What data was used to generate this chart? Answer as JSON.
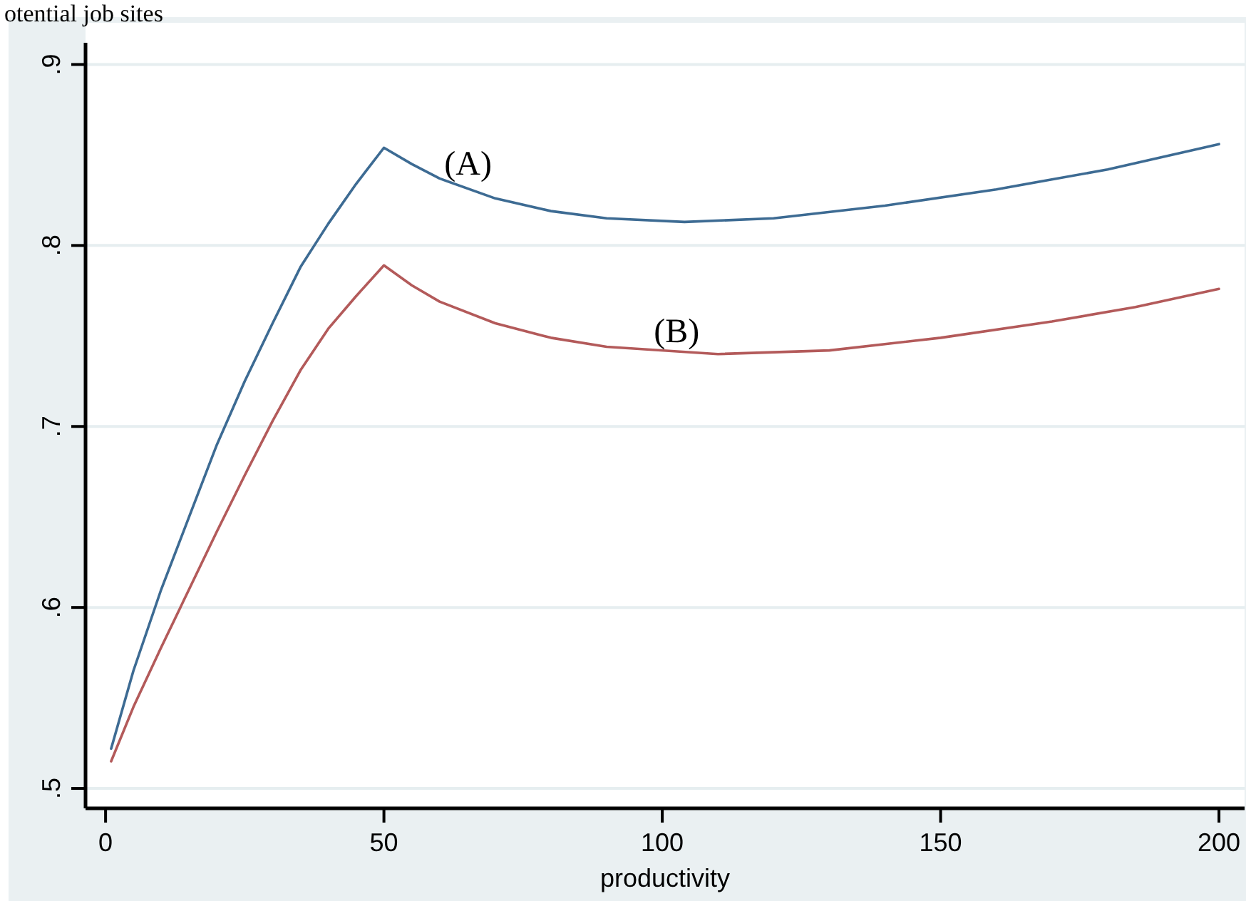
{
  "chart_data": {
    "type": "line",
    "title": "otential job sites",
    "xlabel": "productivity",
    "xlim": [
      -3.6,
      204.6
    ],
    "xticks": [
      0,
      50,
      100,
      150,
      200
    ],
    "ylim": [
      0.489,
      0.912
    ],
    "yticks": [
      {
        "value": 0.5,
        "label": ".5"
      },
      {
        "value": 0.6,
        "label": ".6"
      },
      {
        "value": 0.7,
        "label": ".7"
      },
      {
        "value": 0.8,
        "label": ".8"
      },
      {
        "value": 0.9,
        "label": ".9"
      }
    ],
    "grid": "y",
    "marker": "none",
    "line_style": "solid",
    "x": [
      1,
      5,
      10,
      15,
      20,
      25,
      30,
      35,
      40,
      45,
      50,
      55,
      60,
      70,
      80,
      90,
      104,
      120,
      140,
      160,
      180,
      200
    ],
    "series": [
      {
        "color": "#3d6b93",
        "values": [
          0.522,
          0.565,
          0.61,
          0.65,
          0.69,
          0.725,
          0.757,
          0.788,
          0.812,
          0.834,
          0.854,
          0.845,
          0.837,
          0.826,
          0.819,
          0.815,
          0.813,
          0.815,
          0.822,
          0.831,
          0.842,
          0.856
        ]
      },
      {
        "color": "#b35a5a",
        "x": [
          1,
          5,
          10,
          15,
          20,
          25,
          30,
          35,
          40,
          45,
          50,
          55,
          60,
          70,
          80,
          90,
          110,
          130,
          150,
          170,
          185,
          200
        ],
        "values": [
          0.515,
          0.545,
          0.578,
          0.61,
          0.642,
          0.673,
          0.703,
          0.731,
          0.754,
          0.772,
          0.789,
          0.778,
          0.769,
          0.757,
          0.749,
          0.744,
          0.74,
          0.742,
          0.749,
          0.758,
          0.766,
          0.776
        ]
      }
    ],
    "annotations": [
      "(A)",
      "(B)"
    ]
  }
}
